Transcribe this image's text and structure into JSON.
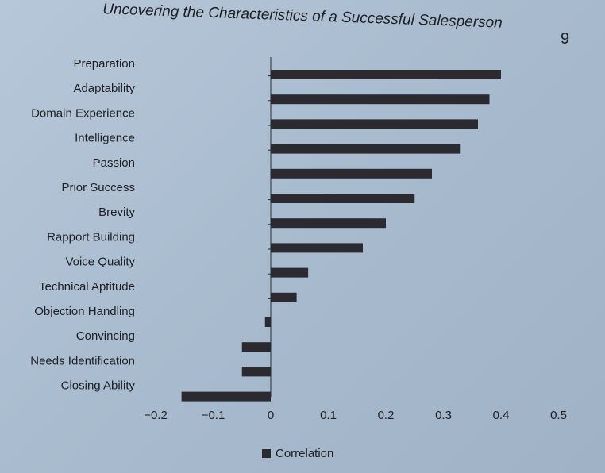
{
  "page": {
    "header_title": "Uncovering the Characteristics of a Successful Salesperson",
    "page_number": "9"
  },
  "chart_data": {
    "type": "bar",
    "orientation": "horizontal",
    "categories": [
      "Preparation",
      "Adaptability",
      "Domain Experience",
      "Intelligence",
      "Passion",
      "Prior Success",
      "Brevity",
      "Rapport Building",
      "Voice Quality",
      "Technical Aptitude",
      "Objection Handling",
      "Convincing",
      "Needs Identification",
      "Closing Ability"
    ],
    "series": [
      {
        "name": "Correlation",
        "values": [
          0.4,
          0.38,
          0.36,
          0.33,
          0.28,
          0.25,
          0.2,
          0.16,
          0.065,
          0.045,
          -0.01,
          -0.05,
          -0.05,
          -0.155
        ]
      }
    ],
    "xlim": [
      -0.2,
      0.5
    ],
    "xticks": [
      "−0.2",
      "−0.1",
      "0",
      "0.1",
      "0.2",
      "0.3",
      "0.4",
      "0.5"
    ],
    "xtick_values": [
      -0.2,
      -0.1,
      0,
      0.1,
      0.2,
      0.3,
      0.4,
      0.5
    ],
    "legend_position": "bottom",
    "bar_color": "#2a2a30",
    "grid": false
  }
}
